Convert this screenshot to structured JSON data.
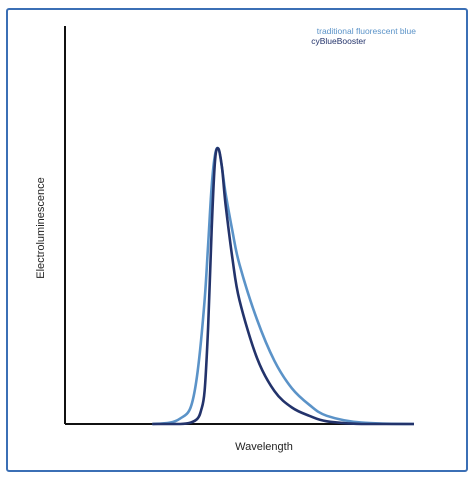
{
  "chart_data": {
    "type": "line",
    "title": "",
    "xlabel": "Wavelength",
    "ylabel": "Electroluminescence",
    "grid": false,
    "legend": "top-right",
    "x_range": [
      0,
      1
    ],
    "y_range": [
      0,
      1
    ],
    "series": [
      {
        "name": "traditional fluorescent blue",
        "color": "#5b93c8",
        "x": [
          0.25,
          0.3,
          0.33,
          0.36,
          0.38,
          0.4,
          0.41,
          0.42,
          0.43,
          0.44,
          0.45,
          0.46,
          0.48,
          0.5,
          0.55,
          0.6,
          0.65,
          0.7,
          0.75,
          0.85,
          1.0
        ],
        "y": [
          0.0,
          0.005,
          0.02,
          0.06,
          0.19,
          0.45,
          0.65,
          0.86,
          0.98,
          1.0,
          0.93,
          0.84,
          0.7,
          0.58,
          0.38,
          0.23,
          0.13,
          0.07,
          0.03,
          0.005,
          0.0
        ]
      },
      {
        "name": "cyBlueBooster",
        "color": "#23336b",
        "x": [
          0.25,
          0.33,
          0.36,
          0.38,
          0.39,
          0.4,
          0.41,
          0.42,
          0.43,
          0.44,
          0.45,
          0.46,
          0.48,
          0.5,
          0.55,
          0.6,
          0.65,
          0.7,
          0.75,
          0.85,
          1.0
        ],
        "y": [
          0.0,
          0.0,
          0.005,
          0.02,
          0.05,
          0.12,
          0.35,
          0.7,
          0.96,
          1.0,
          0.93,
          0.8,
          0.6,
          0.45,
          0.24,
          0.12,
          0.06,
          0.03,
          0.01,
          0.0,
          0.0
        ]
      }
    ]
  }
}
